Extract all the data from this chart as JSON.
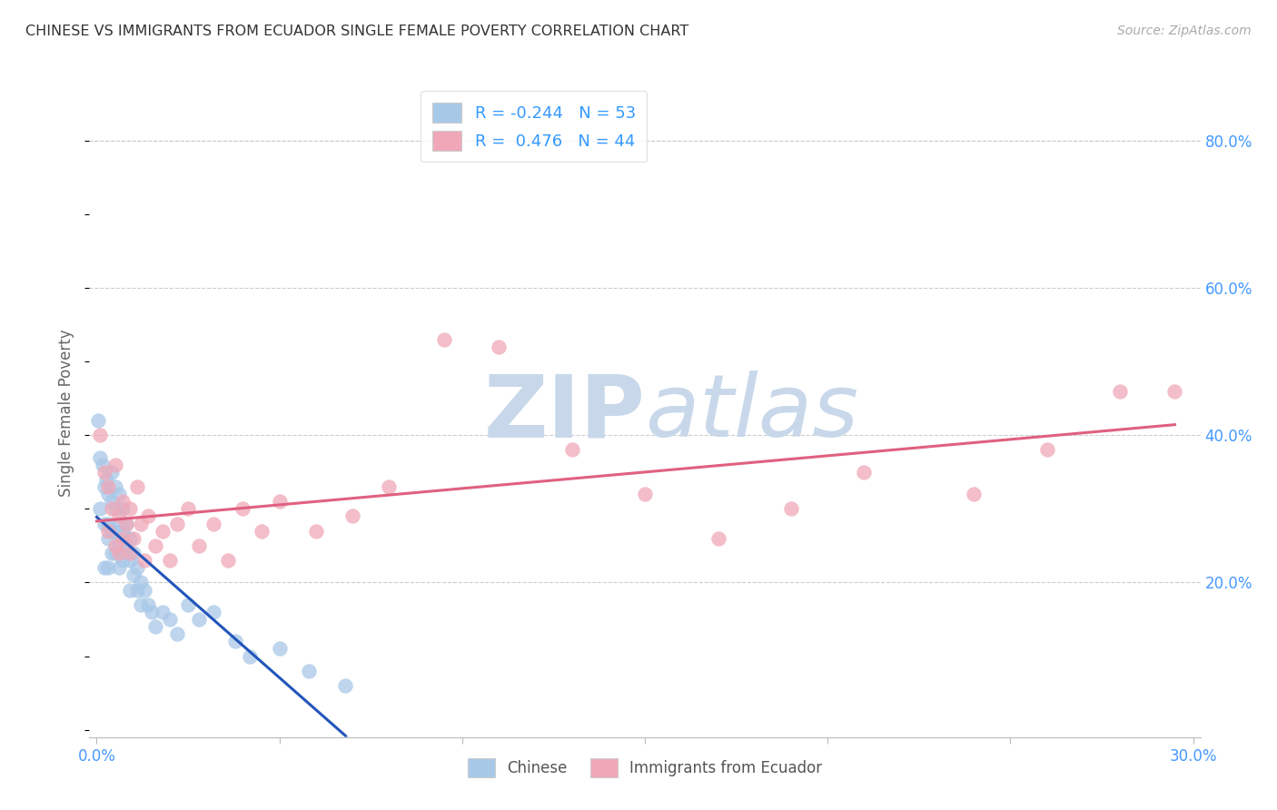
{
  "title": "CHINESE VS IMMIGRANTS FROM ECUADOR SINGLE FEMALE POVERTY CORRELATION CHART",
  "source": "Source: ZipAtlas.com",
  "ylabel": "Single Female Poverty",
  "xlim": [
    -0.002,
    0.302
  ],
  "ylim": [
    -0.01,
    0.87
  ],
  "xticks": [
    0.0,
    0.05,
    0.1,
    0.15,
    0.2,
    0.25,
    0.3
  ],
  "xtick_labels": [
    "0.0%",
    "",
    "",
    "",
    "",
    "",
    "30.0%"
  ],
  "yticks_right": [
    0.2,
    0.4,
    0.6,
    0.8
  ],
  "ytick_right_labels": [
    "20.0%",
    "40.0%",
    "60.0%",
    "80.0%"
  ],
  "chinese_color": "#a8c8e8",
  "ecuador_color": "#f0a8b8",
  "chinese_R": -0.244,
  "chinese_N": 53,
  "ecuador_R": 0.476,
  "ecuador_N": 44,
  "chinese_line_color": "#2255bb",
  "ecuador_line_color": "#e06080",
  "watermark_zip": "ZIP",
  "watermark_atlas": "atlas",
  "watermark_color_zip": "#c8d8ea",
  "watermark_color_atlas": "#c8d8ea",
  "chinese_x": [
    0.0005,
    0.001,
    0.001,
    0.0015,
    0.002,
    0.002,
    0.002,
    0.0025,
    0.003,
    0.003,
    0.003,
    0.003,
    0.004,
    0.004,
    0.004,
    0.004,
    0.005,
    0.005,
    0.005,
    0.005,
    0.006,
    0.006,
    0.006,
    0.006,
    0.007,
    0.007,
    0.007,
    0.008,
    0.008,
    0.009,
    0.009,
    0.009,
    0.01,
    0.01,
    0.011,
    0.011,
    0.012,
    0.012,
    0.013,
    0.014,
    0.015,
    0.016,
    0.018,
    0.02,
    0.022,
    0.025,
    0.028,
    0.032,
    0.038,
    0.042,
    0.05,
    0.058,
    0.068
  ],
  "chinese_y": [
    0.42,
    0.37,
    0.3,
    0.36,
    0.33,
    0.28,
    0.22,
    0.34,
    0.32,
    0.28,
    0.26,
    0.22,
    0.35,
    0.31,
    0.27,
    0.24,
    0.33,
    0.3,
    0.27,
    0.24,
    0.32,
    0.28,
    0.25,
    0.22,
    0.3,
    0.27,
    0.23,
    0.28,
    0.25,
    0.26,
    0.23,
    0.19,
    0.24,
    0.21,
    0.22,
    0.19,
    0.2,
    0.17,
    0.19,
    0.17,
    0.16,
    0.14,
    0.16,
    0.15,
    0.13,
    0.17,
    0.15,
    0.16,
    0.12,
    0.1,
    0.11,
    0.08,
    0.06
  ],
  "ecuador_x": [
    0.001,
    0.002,
    0.003,
    0.003,
    0.004,
    0.005,
    0.005,
    0.006,
    0.006,
    0.007,
    0.007,
    0.008,
    0.009,
    0.009,
    0.01,
    0.011,
    0.012,
    0.013,
    0.014,
    0.016,
    0.018,
    0.02,
    0.022,
    0.025,
    0.028,
    0.032,
    0.036,
    0.04,
    0.045,
    0.05,
    0.06,
    0.07,
    0.08,
    0.095,
    0.11,
    0.13,
    0.15,
    0.17,
    0.19,
    0.21,
    0.24,
    0.26,
    0.28,
    0.295
  ],
  "ecuador_y": [
    0.4,
    0.35,
    0.33,
    0.27,
    0.3,
    0.36,
    0.25,
    0.29,
    0.24,
    0.31,
    0.26,
    0.28,
    0.3,
    0.24,
    0.26,
    0.33,
    0.28,
    0.23,
    0.29,
    0.25,
    0.27,
    0.23,
    0.28,
    0.3,
    0.25,
    0.28,
    0.23,
    0.3,
    0.27,
    0.31,
    0.27,
    0.29,
    0.33,
    0.53,
    0.52,
    0.38,
    0.32,
    0.26,
    0.3,
    0.35,
    0.32,
    0.38,
    0.46,
    0.46
  ]
}
